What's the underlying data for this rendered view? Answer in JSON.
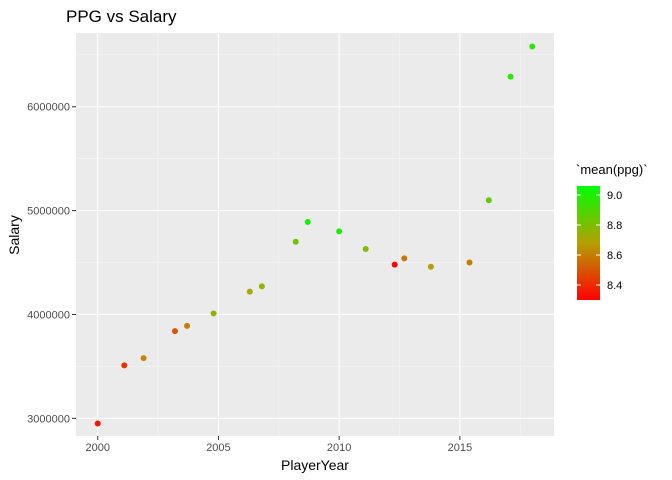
{
  "chart_data": {
    "type": "scatter",
    "title": "PPG vs Salary",
    "xlabel": "PlayerYear",
    "ylabel": "Salary",
    "xlim": [
      1999.1,
      2018.9
    ],
    "ylim": [
      2830000,
      6710000
    ],
    "x_ticks": [
      2000,
      2005,
      2010,
      2015
    ],
    "x_tick_labels": [
      "2000",
      "2005",
      "2010",
      "2015"
    ],
    "y_ticks": [
      3000000,
      4000000,
      5000000,
      6000000
    ],
    "y_tick_labels": [
      "3000000",
      "4000000",
      "5000000",
      "6000000"
    ],
    "grid": true,
    "legend": {
      "title": "`mean(ppg)`",
      "placement": "right",
      "range": [
        8.3,
        9.06
      ],
      "ticks": [
        9.0,
        8.8,
        8.6,
        8.4
      ],
      "tick_labels": [
        "9.0",
        "8.8",
        "8.6",
        "8.4"
      ],
      "low_color": "#ff0000",
      "high_color": "#00ff00"
    },
    "points": [
      {
        "x": 2000.0,
        "y": 2950000,
        "ppg": 8.36
      },
      {
        "x": 2001.1,
        "y": 3510000,
        "ppg": 8.42
      },
      {
        "x": 2001.9,
        "y": 3580000,
        "ppg": 8.62
      },
      {
        "x": 2003.2,
        "y": 3840000,
        "ppg": 8.5
      },
      {
        "x": 2003.7,
        "y": 3890000,
        "ppg": 8.6
      },
      {
        "x": 2004.8,
        "y": 4010000,
        "ppg": 8.74
      },
      {
        "x": 2006.3,
        "y": 4220000,
        "ppg": 8.72
      },
      {
        "x": 2006.8,
        "y": 4270000,
        "ppg": 8.75
      },
      {
        "x": 2008.2,
        "y": 4700000,
        "ppg": 8.82
      },
      {
        "x": 2008.7,
        "y": 4890000,
        "ppg": 9.02
      },
      {
        "x": 2010.0,
        "y": 4800000,
        "ppg": 9.0
      },
      {
        "x": 2011.1,
        "y": 4630000,
        "ppg": 8.8
      },
      {
        "x": 2012.3,
        "y": 4480000,
        "ppg": 8.32
      },
      {
        "x": 2012.7,
        "y": 4540000,
        "ppg": 8.58
      },
      {
        "x": 2013.8,
        "y": 4460000,
        "ppg": 8.68
      },
      {
        "x": 2015.4,
        "y": 4500000,
        "ppg": 8.6
      },
      {
        "x": 2016.2,
        "y": 5100000,
        "ppg": 8.84
      },
      {
        "x": 2017.1,
        "y": 6290000,
        "ppg": 8.98
      },
      {
        "x": 2018.0,
        "y": 6580000,
        "ppg": 8.95
      }
    ]
  }
}
